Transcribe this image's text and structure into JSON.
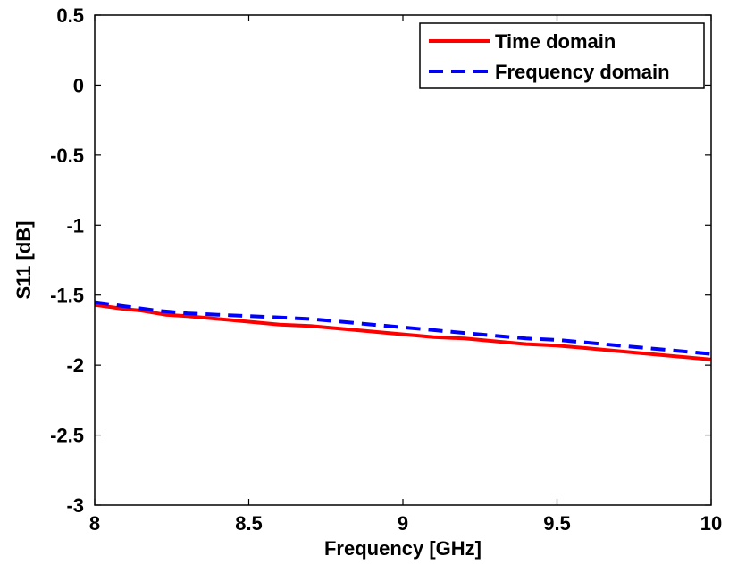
{
  "chart_data": {
    "type": "line",
    "xlabel": "Frequency [GHz]",
    "ylabel": "S11 [dB]",
    "xlim": [
      8,
      10
    ],
    "ylim": [
      -3,
      0.5
    ],
    "x_ticks": [
      8,
      8.5,
      9,
      9.5,
      10
    ],
    "y_ticks": [
      -3,
      -2.5,
      -2,
      -1.5,
      -1,
      -0.5,
      0,
      0.5
    ],
    "x_tick_labels": [
      "8",
      "8.5",
      "9",
      "9.5",
      "10"
    ],
    "y_tick_labels": [
      "-3",
      "-2.5",
      "-2",
      "-1.5",
      "-1",
      "-0.5",
      "0",
      "0.5"
    ],
    "grid": false,
    "legend_position": "top-right",
    "series": [
      {
        "name": "Time domain",
        "color": "#ff0000",
        "style": "solid",
        "x": [
          8.0,
          8.1,
          8.15,
          8.23,
          8.3,
          8.4,
          8.5,
          8.6,
          8.7,
          8.8,
          8.9,
          9.0,
          9.1,
          9.2,
          9.3,
          9.4,
          9.5,
          9.6,
          9.7,
          9.8,
          9.9,
          10.0
        ],
        "y": [
          -1.57,
          -1.6,
          -1.61,
          -1.64,
          -1.65,
          -1.67,
          -1.69,
          -1.71,
          -1.72,
          -1.74,
          -1.76,
          -1.78,
          -1.8,
          -1.81,
          -1.83,
          -1.85,
          -1.86,
          -1.88,
          -1.9,
          -1.92,
          -1.94,
          -1.96
        ]
      },
      {
        "name": "Frequency domain",
        "color": "#0000ff",
        "style": "dashed",
        "x": [
          8.0,
          8.1,
          8.2,
          8.3,
          8.4,
          8.5,
          8.6,
          8.7,
          8.8,
          8.9,
          9.0,
          9.1,
          9.2,
          9.3,
          9.4,
          9.5,
          9.6,
          9.7,
          9.8,
          9.9,
          10.0
        ],
        "y": [
          -1.55,
          -1.58,
          -1.61,
          -1.63,
          -1.64,
          -1.65,
          -1.66,
          -1.67,
          -1.69,
          -1.71,
          -1.73,
          -1.75,
          -1.77,
          -1.79,
          -1.81,
          -1.82,
          -1.84,
          -1.86,
          -1.88,
          -1.9,
          -1.92
        ]
      }
    ]
  }
}
